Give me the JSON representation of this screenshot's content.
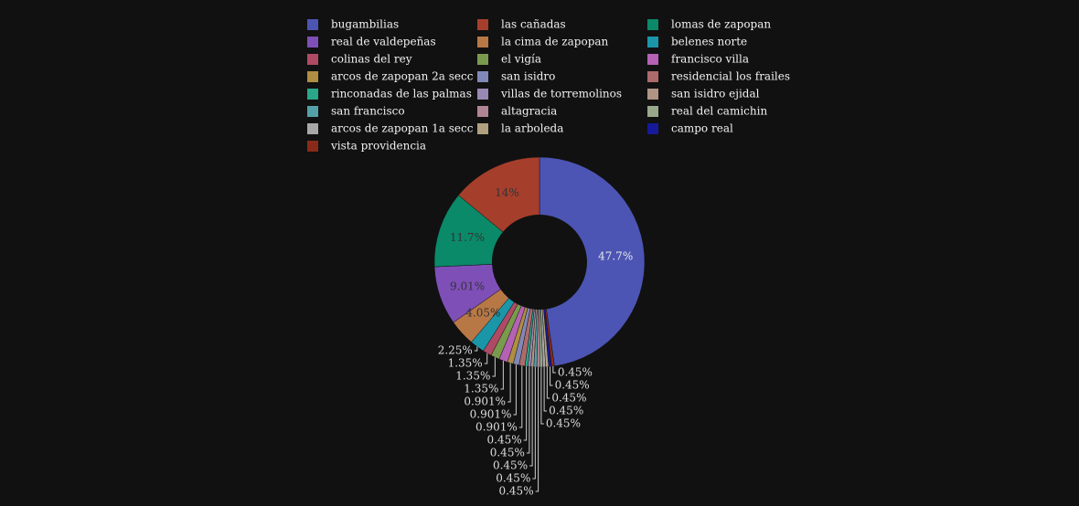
{
  "chart_data": {
    "type": "pie",
    "hole": 0.45,
    "categories": [
      "bugambilias",
      "las cañadas",
      "lomas de zapopan",
      "real de valdepeñas",
      "la cima de zapopan",
      "belenes norte",
      "colinas del rey",
      "el vigía",
      "francisco villa",
      "arcos de zapopan 2a secc",
      "san isidro",
      "residencial los frailes",
      "rinconadas de las palmas",
      "villas de torremolinos",
      "san isidro ejidal",
      "san francisco",
      "altagracia",
      "real del camichin",
      "arcos de zapopan 1a secc",
      "la arboleda",
      "campo real",
      "vista providencia"
    ],
    "values": [
      47.7,
      14,
      11.7,
      9.01,
      4.05,
      2.25,
      1.35,
      1.35,
      1.35,
      0.901,
      0.901,
      0.901,
      0.45,
      0.45,
      0.45,
      0.45,
      0.45,
      0.45,
      0.45,
      0.45,
      0.45,
      0.45
    ],
    "value_labels": [
      "47.7%",
      "14%",
      "11.7%",
      "9.01%",
      "4.05%",
      "2.25%",
      "1.35%",
      "1.35%",
      "1.35%",
      "0.901%",
      "0.901%",
      "0.901%",
      "0.45%",
      "0.45%",
      "0.45%",
      "0.45%",
      "0.45%",
      "0.45%",
      "0.45%",
      "0.45%",
      "0.45%",
      "0.45%"
    ],
    "colors": [
      "#4c55b4",
      "#a63e2c",
      "#0a8a68",
      "#7f4fb8",
      "#b87846",
      "#1a96a8",
      "#b04a64",
      "#7a9a4e",
      "#b462b4",
      "#b08e42",
      "#8088b8",
      "#ad6a6a",
      "#2aa688",
      "#9a88b4",
      "#b09484",
      "#54a0a8",
      "#b08494",
      "#98a88a",
      "#a8a8a8",
      "#b0a080",
      "#161a9a",
      "#8a2a1a"
    ]
  }
}
